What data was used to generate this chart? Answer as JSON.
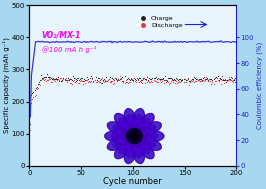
{
  "title": "",
  "xlabel": "Cycle number",
  "ylabel_left": "Specific capacity (mAh g⁻¹)",
  "ylabel_right": "Coulombic efficiency (%)",
  "xlim": [
    0,
    200
  ],
  "ylim_left": [
    0,
    500
  ],
  "ylim_right": [
    0,
    125
  ],
  "yticks_left": [
    0,
    100,
    200,
    300,
    400,
    500
  ],
  "yticks_right": [
    0,
    20,
    40,
    60,
    80,
    100
  ],
  "xticks": [
    0,
    50,
    100,
    150,
    200
  ],
  "charge_color": "#222222",
  "discharge_color": "#ee3333",
  "ce_color": "#2222cc",
  "annotation_text": "VO₂/MX-1",
  "annotation_text2": "@100 mA h g⁻¹",
  "annotation_color": "#ee00ee",
  "bg_color": "#a8d8f0",
  "plot_bg": "#e8f4fc",
  "n_cycles": 200,
  "charge_stable": 270,
  "discharge_stable": 265,
  "ce_stable": 96.5,
  "legend_charge": "Charge",
  "legend_discharge": "Discharge"
}
